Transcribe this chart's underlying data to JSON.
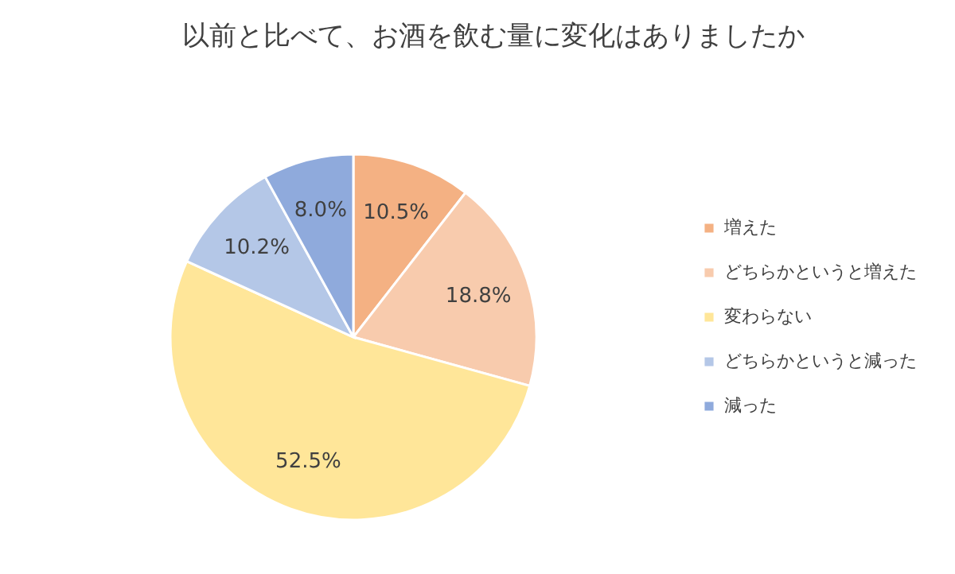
{
  "chart_data": {
    "type": "pie",
    "title": "以前と比べて、お酒を飲む量に変化はありましたか",
    "categories": [
      "増えた",
      "どちらかというと増えた",
      "変わらない",
      "どちらかというと減った",
      "減った"
    ],
    "values": [
      10.5,
      18.8,
      52.5,
      10.2,
      8.0
    ],
    "value_labels": [
      "10.5%",
      "18.8%",
      "52.5%",
      "10.2%",
      "8.0%"
    ],
    "colors": [
      "#f4b183",
      "#f8cbad",
      "#ffe699",
      "#b4c7e7",
      "#8faadc"
    ],
    "legend": "right"
  }
}
